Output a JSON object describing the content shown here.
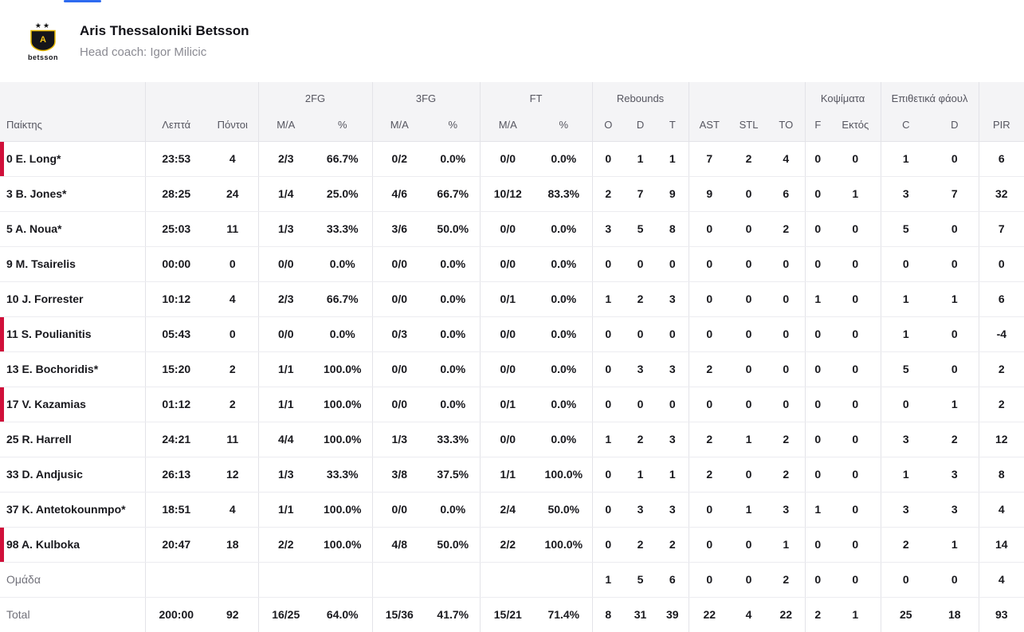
{
  "accent": {
    "tab_indicator_color": "#2e6bf0",
    "on_court_marker_color": "#d0103a",
    "logo_yellow": "#f5c518"
  },
  "header": {
    "team_name": "Aris Thessaloniki Betsson",
    "coach": "Head coach: Igor Milicic",
    "logo_stars": "★★",
    "logo_text": "betsson"
  },
  "table": {
    "groups": {
      "fg2": "2FG",
      "fg3": "3FG",
      "ft": "FT",
      "rebounds": "Rebounds",
      "blocks": "Κοψίματα",
      "off_fouls": "Επιθετικά φάουλ"
    },
    "cols": {
      "player": "Παίκτης",
      "minutes": "Λεπτά",
      "points": "Πόντοι",
      "ma": "M/A",
      "pct": "%",
      "o": "O",
      "d": "D",
      "t": "T",
      "ast": "AST",
      "stl": "STL",
      "to": "TO",
      "f": "F",
      "out": "Εκτός",
      "c": "C",
      "d2": "D",
      "pir": "PIR"
    },
    "rows": [
      {
        "name": "0 E. Long*",
        "marked": true,
        "cells": [
          "23:53",
          "4",
          "2/3",
          "66.7%",
          "0/2",
          "0.0%",
          "0/0",
          "0.0%",
          "0",
          "1",
          "1",
          "7",
          "2",
          "4",
          "0",
          "0",
          "1",
          "0",
          "6"
        ]
      },
      {
        "name": "3 B. Jones*",
        "marked": false,
        "cells": [
          "28:25",
          "24",
          "1/4",
          "25.0%",
          "4/6",
          "66.7%",
          "10/12",
          "83.3%",
          "2",
          "7",
          "9",
          "9",
          "0",
          "6",
          "0",
          "1",
          "3",
          "7",
          "32"
        ]
      },
      {
        "name": "5 A. Noua*",
        "marked": false,
        "cells": [
          "25:03",
          "11",
          "1/3",
          "33.3%",
          "3/6",
          "50.0%",
          "0/0",
          "0.0%",
          "3",
          "5",
          "8",
          "0",
          "0",
          "2",
          "0",
          "0",
          "5",
          "0",
          "7"
        ]
      },
      {
        "name": "9 M. Tsairelis",
        "marked": false,
        "cells": [
          "00:00",
          "0",
          "0/0",
          "0.0%",
          "0/0",
          "0.0%",
          "0/0",
          "0.0%",
          "0",
          "0",
          "0",
          "0",
          "0",
          "0",
          "0",
          "0",
          "0",
          "0",
          "0"
        ]
      },
      {
        "name": "10 J. Forrester",
        "marked": false,
        "cells": [
          "10:12",
          "4",
          "2/3",
          "66.7%",
          "0/0",
          "0.0%",
          "0/1",
          "0.0%",
          "1",
          "2",
          "3",
          "0",
          "0",
          "0",
          "1",
          "0",
          "1",
          "1",
          "6"
        ]
      },
      {
        "name": "11 S. Poulianitis",
        "marked": true,
        "cells": [
          "05:43",
          "0",
          "0/0",
          "0.0%",
          "0/3",
          "0.0%",
          "0/0",
          "0.0%",
          "0",
          "0",
          "0",
          "0",
          "0",
          "0",
          "0",
          "0",
          "1",
          "0",
          "-4"
        ]
      },
      {
        "name": "13 E. Bochoridis*",
        "marked": false,
        "cells": [
          "15:20",
          "2",
          "1/1",
          "100.0%",
          "0/0",
          "0.0%",
          "0/0",
          "0.0%",
          "0",
          "3",
          "3",
          "2",
          "0",
          "0",
          "0",
          "0",
          "5",
          "0",
          "2"
        ]
      },
      {
        "name": "17 V. Kazamias",
        "marked": true,
        "cells": [
          "01:12",
          "2",
          "1/1",
          "100.0%",
          "0/0",
          "0.0%",
          "0/1",
          "0.0%",
          "0",
          "0",
          "0",
          "0",
          "0",
          "0",
          "0",
          "0",
          "0",
          "1",
          "2"
        ]
      },
      {
        "name": "25 R. Harrell",
        "marked": false,
        "cells": [
          "24:21",
          "11",
          "4/4",
          "100.0%",
          "1/3",
          "33.3%",
          "0/0",
          "0.0%",
          "1",
          "2",
          "3",
          "2",
          "1",
          "2",
          "0",
          "0",
          "3",
          "2",
          "12"
        ]
      },
      {
        "name": "33 D. Andjusic",
        "marked": false,
        "cells": [
          "26:13",
          "12",
          "1/3",
          "33.3%",
          "3/8",
          "37.5%",
          "1/1",
          "100.0%",
          "0",
          "1",
          "1",
          "2",
          "0",
          "2",
          "0",
          "0",
          "1",
          "3",
          "8"
        ]
      },
      {
        "name": "37 K. Antetokounmpo*",
        "marked": false,
        "cells": [
          "18:51",
          "4",
          "1/1",
          "100.0%",
          "0/0",
          "0.0%",
          "2/4",
          "50.0%",
          "0",
          "3",
          "3",
          "0",
          "1",
          "3",
          "1",
          "0",
          "3",
          "3",
          "4"
        ]
      },
      {
        "name": "98 A. Kulboka",
        "marked": true,
        "cells": [
          "20:47",
          "18",
          "2/2",
          "100.0%",
          "4/8",
          "50.0%",
          "2/2",
          "100.0%",
          "0",
          "2",
          "2",
          "0",
          "0",
          "1",
          "0",
          "0",
          "2",
          "1",
          "14"
        ]
      }
    ],
    "team_row": {
      "name": "Ομάδα",
      "marked": false,
      "cells": [
        "",
        "",
        "",
        "",
        "",
        "",
        "",
        "",
        "1",
        "5",
        "6",
        "0",
        "0",
        "2",
        "0",
        "0",
        "0",
        "0",
        "4"
      ]
    },
    "total_row": {
      "name": "Total",
      "marked": false,
      "cells": [
        "200:00",
        "92",
        "16/25",
        "64.0%",
        "15/36",
        "41.7%",
        "15/21",
        "71.4%",
        "8",
        "31",
        "39",
        "22",
        "4",
        "22",
        "2",
        "1",
        "25",
        "18",
        "93"
      ]
    }
  }
}
